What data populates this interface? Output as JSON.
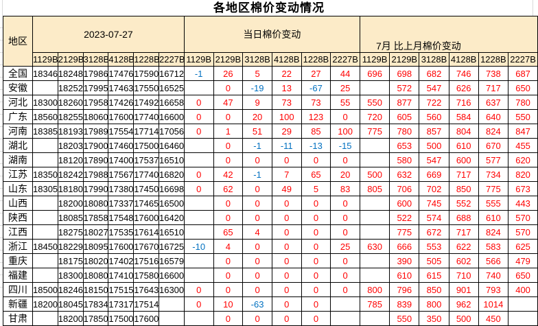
{
  "title": "各地区棉价变动情况",
  "table": {
    "region_header": "地区",
    "groups": [
      {
        "label": "2023-07-27"
      },
      {
        "label": "当日棉价变动"
      },
      {
        "label": "7月 比上月棉价变动"
      }
    ],
    "grade_codes": [
      "1129B",
      "2129B",
      "3128B",
      "4128B",
      "1228B",
      "2227B"
    ],
    "colors": {
      "header_bg": "#FCEBC8",
      "positive_change": "#FF0000",
      "negative_change": "#0070C0",
      "border": "#000000"
    },
    "rows": [
      {
        "region": "全国",
        "prices": [
          "18346",
          "18248",
          "17986",
          "17476",
          "17590",
          "16712"
        ],
        "daily_change": [
          "-1",
          "26",
          "5",
          "22",
          "27",
          "44"
        ],
        "monthly_change": [
          "696",
          "698",
          "682",
          "746",
          "738",
          "687"
        ]
      },
      {
        "region": "安徽",
        "prices": [
          "",
          "18252",
          "17995",
          "17463",
          "17550",
          "16525"
        ],
        "daily_change": [
          "",
          "0",
          "-19",
          "13",
          "-67",
          "25"
        ],
        "monthly_change": [
          "",
          "572",
          "547",
          "626",
          "717",
          "650"
        ]
      },
      {
        "region": "河北",
        "prices": [
          "18300",
          "18260",
          "17958",
          "17426",
          "17492",
          "16658"
        ],
        "daily_change": [
          "0",
          "47",
          "9",
          "73",
          "73",
          "55"
        ],
        "monthly_change": [
          "550",
          "877",
          "722",
          "716",
          "637",
          "780"
        ]
      },
      {
        "region": "广东",
        "prices": [
          "18560",
          "18255",
          "18060",
          "17600",
          "17740",
          "16600"
        ],
        "daily_change": [
          "0",
          "0",
          "20",
          "100",
          "123",
          "0"
        ],
        "monthly_change": [
          "720",
          "605",
          "560",
          "584",
          "640",
          "550"
        ]
      },
      {
        "region": "河南",
        "prices": [
          "18385",
          "18193",
          "17989",
          "17554",
          "17714",
          "17056"
        ],
        "daily_change": [
          "0",
          "1",
          "51",
          "29",
          "85",
          "100"
        ],
        "monthly_change": [
          "775",
          "780",
          "857",
          "804",
          "824",
          "847"
        ]
      },
      {
        "region": "湖北",
        "prices": [
          "",
          "18203",
          "17900",
          "17460",
          "17500",
          "16460"
        ],
        "daily_change": [
          "",
          "0",
          "-1",
          "-11",
          "-13",
          "-15"
        ],
        "monthly_change": [
          "",
          "653",
          "500",
          "610",
          "670",
          "455"
        ]
      },
      {
        "region": "湖南",
        "prices": [
          "",
          "18120",
          "17890",
          "17400",
          "17537",
          "16510"
        ],
        "daily_change": [
          "",
          "0",
          "0",
          "0",
          "0",
          "0"
        ],
        "monthly_change": [
          "",
          "580",
          "547",
          "600",
          "577",
          "620"
        ]
      },
      {
        "region": "江苏",
        "prices": [
          "18350",
          "18242",
          "17988",
          "17567",
          "17740",
          "16820"
        ],
        "daily_change": [
          "0",
          "42",
          "-1",
          "7",
          "65",
          "20"
        ],
        "monthly_change": [
          "500",
          "632",
          "669",
          "717",
          "734",
          "820"
        ]
      },
      {
        "region": "山东",
        "prices": [
          "18305",
          "18180",
          "17990",
          "17380",
          "17450",
          "16698"
        ],
        "daily_change": [
          "0",
          "62",
          "0",
          "49",
          "5",
          "83"
        ],
        "monthly_change": [
          "805",
          "706",
          "702",
          "850",
          "775",
          "673"
        ]
      },
      {
        "region": "山西",
        "prices": [
          "",
          "18200",
          "18080",
          "17337",
          "17465",
          "16500"
        ],
        "daily_change": [
          "",
          "0",
          "0",
          "0",
          "0",
          "0"
        ],
        "monthly_change": [
          "",
          "600",
          "745",
          "552",
          "555",
          "443"
        ]
      },
      {
        "region": "陕西",
        "prices": [
          "",
          "18085",
          "17858",
          "17548",
          "17600",
          "16420"
        ],
        "daily_change": [
          "",
          "0",
          "0",
          "0",
          "0",
          "0"
        ],
        "monthly_change": [
          "",
          "522",
          "574",
          "688",
          "610",
          "570"
        ]
      },
      {
        "region": "江西",
        "prices": [
          "",
          "18275",
          "18027",
          "17535",
          "17614",
          "16510"
        ],
        "daily_change": [
          "",
          "65",
          "4",
          "0",
          "0",
          "0"
        ],
        "monthly_change": [
          "",
          "775",
          "672",
          "717",
          "824",
          "570"
        ]
      },
      {
        "region": "浙江",
        "prices": [
          "18450",
          "18229",
          "18095",
          "17600",
          "17670",
          "16725"
        ],
        "daily_change": [
          "-10",
          "4",
          "0",
          "0",
          "0",
          "25"
        ],
        "monthly_change": [
          "630",
          "666",
          "553",
          "622",
          "583",
          "625"
        ]
      },
      {
        "region": "重庆",
        "prices": [
          "",
          "18175",
          "18020",
          "17402",
          "17516",
          "16579"
        ],
        "daily_change": [
          "",
          "0",
          "0",
          "0",
          "0",
          "0"
        ],
        "monthly_change": [
          "",
          "390",
          "505",
          "602",
          "566",
          "479"
        ]
      },
      {
        "region": "福建",
        "prices": [
          "",
          "18300",
          "18080",
          "17410",
          "17580",
          "16600"
        ],
        "daily_change": [
          "",
          "0",
          "0",
          "0",
          "0",
          "0"
        ],
        "monthly_change": [
          "",
          "610",
          "615",
          "710",
          "740",
          "650"
        ]
      },
      {
        "region": "四川",
        "prices": [
          "18500",
          "18246",
          "18150",
          "17515",
          "17643",
          "16300"
        ],
        "daily_change": [
          "0",
          "0",
          "0",
          "0",
          "0",
          "0"
        ],
        "monthly_change": [
          "800",
          "796",
          "850",
          "901",
          "793",
          "400"
        ]
      },
      {
        "region": "新疆",
        "prices": [
          "18200",
          "18045",
          "17834",
          "17317",
          "17514",
          ""
        ],
        "daily_change": [
          "0",
          "10",
          "-63",
          "0",
          "0",
          ""
        ],
        "monthly_change": [
          "785",
          "839",
          "800",
          "962",
          "1014",
          ""
        ]
      },
      {
        "region": "甘肃",
        "prices": [
          "",
          "18200",
          "17850",
          "17500",
          "17600",
          ""
        ],
        "daily_change": [
          "",
          "0",
          "0",
          "0",
          "0",
          ""
        ],
        "monthly_change": [
          "",
          "550",
          "350",
          "500",
          "450",
          ""
        ]
      }
    ]
  }
}
